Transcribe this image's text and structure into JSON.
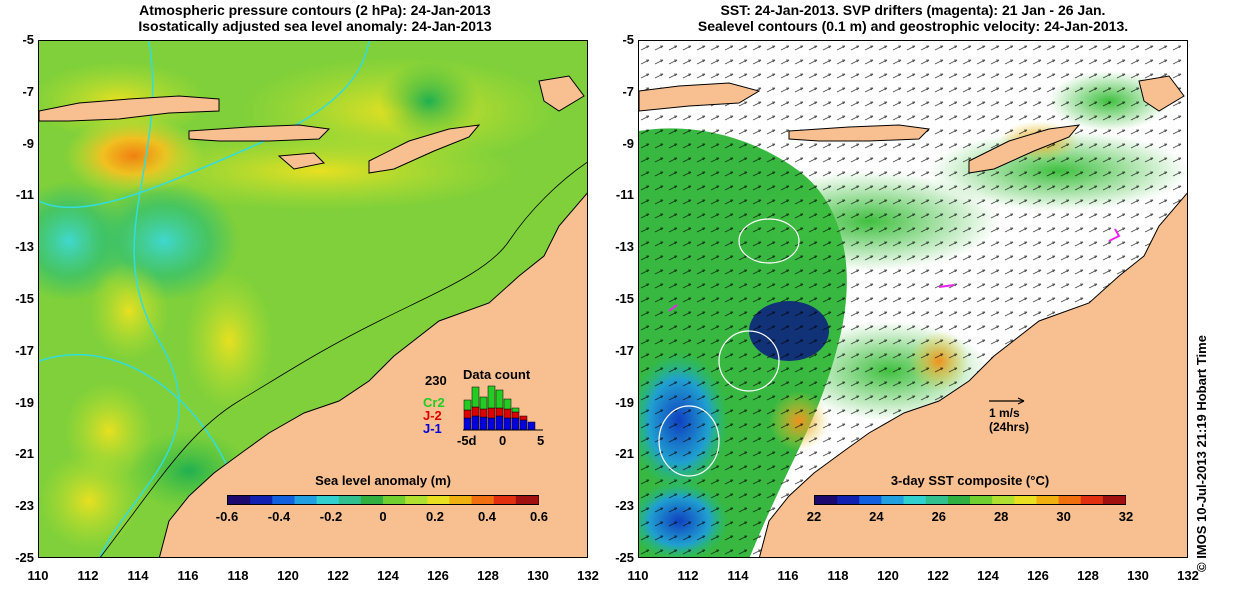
{
  "left_panel": {
    "title_line1": "Atmospheric pressure contours (2 hPa): 24-Jan-2013",
    "title_line2": "Isostatically adjusted sea level anomaly: 24-Jan-2013",
    "colorbar": {
      "title": "Sea level anomaly (m)",
      "labels": [
        "-0.6",
        "-0.4",
        "-0.2",
        "0",
        "0.2",
        "0.4",
        "0.6"
      ]
    },
    "data_count": {
      "title": "Data count",
      "max_label": "230",
      "missions": [
        {
          "label": "Cr2",
          "color": "#22cc22"
        },
        {
          "label": "J-2",
          "color": "#dd0000"
        },
        {
          "label": "J-1",
          "color": "#0000dd"
        }
      ],
      "x_labels": [
        "-5d",
        "0",
        "5"
      ]
    }
  },
  "right_panel": {
    "title_line1": "SST: 24-Jan-2013. SVP drifters (magenta): 21 Jan - 26 Jan.",
    "title_line2": "Sealevel contours (0.1 m) and geostrophic velocity: 24-Jan-2013.",
    "scale_arrow": {
      "line1": "1 m/s",
      "line2": "(24hrs)"
    },
    "colorbar": {
      "title": "3-day SST composite (°C)",
      "labels": [
        "22",
        "24",
        "26",
        "28",
        "30",
        "32"
      ]
    }
  },
  "axes": {
    "y_labels": [
      "-5",
      "-7",
      "-9",
      "-11",
      "-13",
      "-15",
      "-17",
      "-19",
      "-21",
      "-23",
      "-25"
    ],
    "x_labels": [
      "110",
      "112",
      "114",
      "116",
      "118",
      "120",
      "122",
      "124",
      "126",
      "128",
      "130",
      "132"
    ]
  },
  "credit": "© IMOS 10-Jul-2013 21:19 Hobart Time",
  "colors": {
    "land": "#f8c090",
    "ocean_anomaly_base": "#7fd03a",
    "contour_cyan": "#33dddd",
    "drifter_magenta": "#ee22ee"
  }
}
